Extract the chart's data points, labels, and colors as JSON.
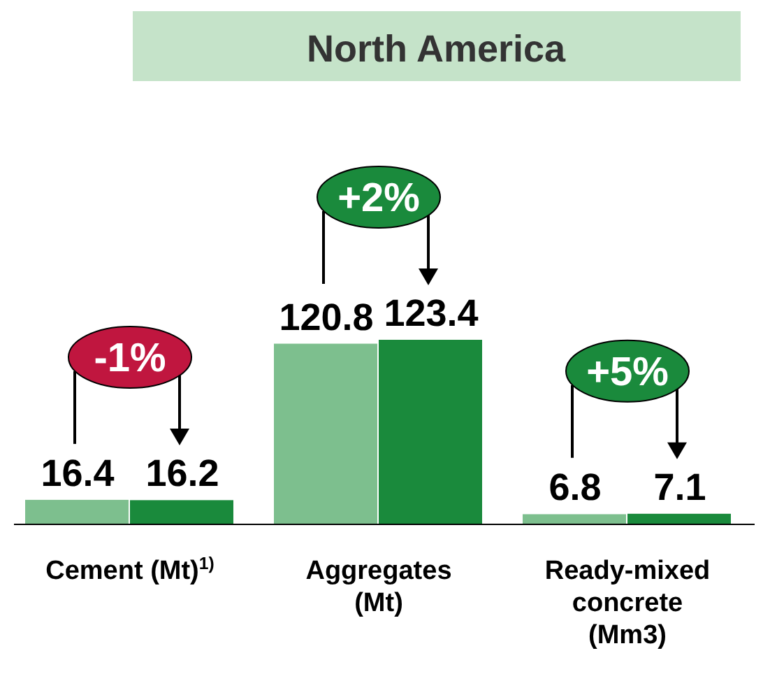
{
  "chart_data": {
    "type": "bar",
    "title": "North America",
    "categories": [
      "Cement (Mt)$^{1)}$",
      "Aggregates (Mt)",
      "Ready-mixed concrete (Mm3)"
    ],
    "series": [
      {
        "color": "#7dbf8e",
        "values": [
          16.4,
          120.8,
          6.8
        ]
      },
      {
        "color": "#1a8a3c",
        "values": [
          16.2,
          123.4,
          7.1
        ]
      }
    ],
    "data_labels": true,
    "annotations": [
      "-1%",
      "+2%",
      "+5%"
    ]
  }
}
